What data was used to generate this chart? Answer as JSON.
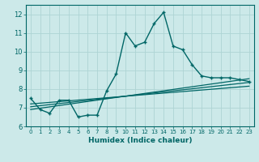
{
  "xlabel": "Humidex (Indice chaleur)",
  "bg_color": "#cce9e9",
  "grid_color": "#aed4d4",
  "line_color": "#006666",
  "xlim": [
    -0.5,
    23.5
  ],
  "ylim": [
    6.0,
    12.5
  ],
  "yticks": [
    6,
    7,
    8,
    9,
    10,
    11,
    12
  ],
  "xticks": [
    0,
    1,
    2,
    3,
    4,
    5,
    6,
    7,
    8,
    9,
    10,
    11,
    12,
    13,
    14,
    15,
    16,
    17,
    18,
    19,
    20,
    21,
    22,
    23
  ],
  "main_line_x": [
    0,
    1,
    2,
    3,
    4,
    5,
    6,
    7,
    8,
    9,
    10,
    11,
    12,
    13,
    14,
    15,
    16,
    17,
    18,
    19,
    20,
    21,
    22,
    23
  ],
  "main_line_y": [
    7.5,
    6.9,
    6.7,
    7.4,
    7.4,
    6.5,
    6.6,
    6.6,
    7.9,
    8.8,
    11.0,
    10.3,
    10.5,
    11.5,
    12.1,
    10.3,
    10.1,
    9.3,
    8.7,
    8.6,
    8.6,
    8.6,
    8.5,
    8.4
  ],
  "line2_x": [
    0,
    23
  ],
  "line2_y": [
    6.9,
    8.55
  ],
  "line3_x": [
    0,
    23
  ],
  "line3_y": [
    7.05,
    8.35
  ],
  "line4_x": [
    0,
    23
  ],
  "line4_y": [
    7.2,
    8.15
  ]
}
